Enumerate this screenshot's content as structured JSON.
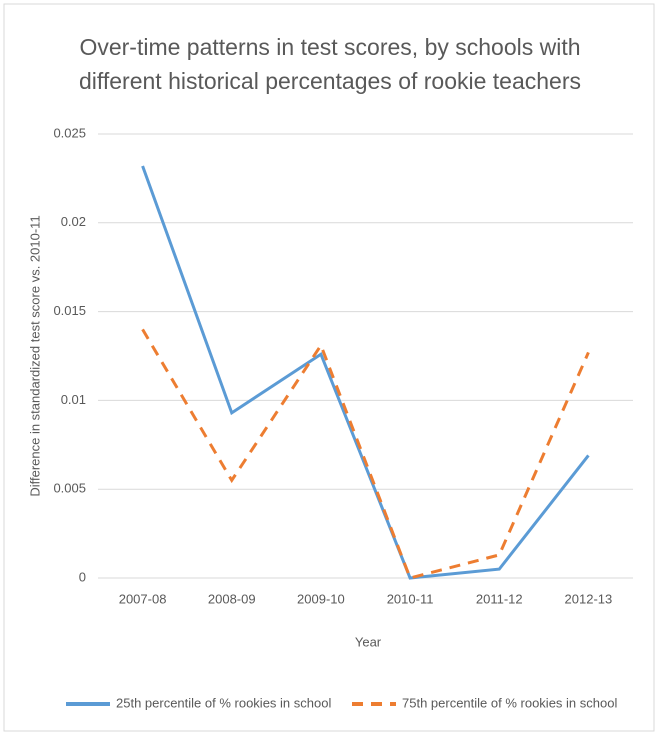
{
  "chart_data": {
    "type": "line",
    "title": "Over-time patterns in test scores, by schools with different historical percentages of rookie teachers",
    "x_label": "Year",
    "y_label": "Difference in standardized test score vs. 2010-11",
    "categories": [
      "2007-08",
      "2008-09",
      "2009-10",
      "2010-11",
      "2011-12",
      "2012-13"
    ],
    "series": [
      {
        "name": "25th percentile of % rookies in school",
        "color": "#5b9bd5",
        "line_style": "solid",
        "values": [
          0.0232,
          0.0093,
          0.0126,
          0,
          0.0005,
          0.0069
        ]
      },
      {
        "name": "75th percentile of % rookies in school",
        "color": "#ed7d31",
        "line_style": "dashed",
        "values": [
          0.014,
          0.0055,
          0.0131,
          0,
          0.0013,
          0.0127
        ]
      }
    ],
    "ylim": [
      0,
      0.025
    ],
    "yticks": [
      0,
      0.005,
      0.01,
      0.015,
      0.02,
      0.025
    ],
    "grid": true,
    "legend": "bottom"
  }
}
